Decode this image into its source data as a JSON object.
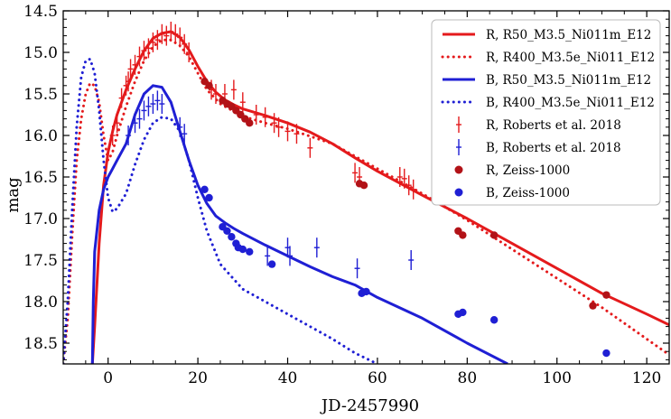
{
  "chart_data": {
    "type": "scatter",
    "title": "",
    "xlabel": "JD-2457990",
    "ylabel": "mag",
    "xlim": [
      -10,
      125
    ],
    "ylim": [
      18.75,
      14.5
    ],
    "y_inverted": true,
    "xticks": [
      0,
      20,
      40,
      60,
      80,
      100,
      120
    ],
    "yticks": [
      14.5,
      15.0,
      15.5,
      16.0,
      16.5,
      17.0,
      17.5,
      18.0,
      18.5
    ],
    "ytick_labels": [
      "14.5",
      "15.0",
      "15.5",
      "16.0",
      "16.5",
      "17.0",
      "17.5",
      "18.0",
      "18.5"
    ],
    "xtick_labels": [
      "0",
      "20",
      "40",
      "60",
      "80",
      "100",
      "120"
    ],
    "grid": false,
    "legend_position": "top-right",
    "model_curves": [
      {
        "name": "R, R50_M3.5_Ni011m_E12",
        "color": "#e41a1c",
        "style": "solid",
        "x": [
          -3.5,
          -3,
          -2,
          -1,
          0,
          1,
          2,
          4,
          6,
          8,
          10,
          12,
          14,
          16,
          18,
          20,
          22,
          24,
          26,
          28,
          30,
          35,
          40,
          45,
          50,
          55,
          60,
          70,
          80,
          90,
          100,
          110,
          120,
          125
        ],
        "y": [
          18.75,
          18.3,
          17.3,
          16.6,
          16.2,
          15.95,
          15.75,
          15.45,
          15.2,
          14.98,
          14.83,
          14.77,
          14.75,
          14.82,
          14.97,
          15.17,
          15.35,
          15.48,
          15.57,
          15.63,
          15.68,
          15.76,
          15.85,
          15.96,
          16.1,
          16.27,
          16.43,
          16.72,
          17.0,
          17.3,
          17.6,
          17.9,
          18.15,
          18.28
        ]
      },
      {
        "name": "R, R400_M3.5e_Ni011_E12",
        "color": "#e41a1c",
        "style": "dotted",
        "x": [
          -10,
          -9,
          -8,
          -7,
          -6,
          -5,
          -4,
          -3,
          -2,
          -1,
          0,
          1,
          2,
          4,
          6,
          8,
          10,
          12,
          14,
          16,
          18,
          20,
          22,
          25,
          30,
          35,
          40,
          50,
          60,
          70,
          80,
          90,
          100,
          110,
          120,
          125
        ],
        "y": [
          18.75,
          18.2,
          17.2,
          16.3,
          15.8,
          15.5,
          15.37,
          15.4,
          15.6,
          16.0,
          16.3,
          16.2,
          16.0,
          15.65,
          15.35,
          15.1,
          14.93,
          14.85,
          14.85,
          14.92,
          15.05,
          15.25,
          15.45,
          15.62,
          15.77,
          15.85,
          15.92,
          16.1,
          16.4,
          16.7,
          17.02,
          17.37,
          17.72,
          18.07,
          18.45,
          18.64
        ]
      },
      {
        "name": "B, R50_M3.5_Ni011m_E12",
        "color": "#1f1fd4",
        "style": "solid",
        "x": [
          -3.5,
          -3.3,
          -3,
          -2,
          -1,
          0,
          1,
          2,
          4,
          6,
          8,
          10,
          12,
          14,
          16,
          18,
          20,
          22,
          24,
          26,
          28,
          30,
          35,
          40,
          45,
          50,
          55,
          60,
          70,
          80,
          89
        ],
        "y": [
          18.75,
          18.0,
          17.4,
          16.9,
          16.65,
          16.5,
          16.4,
          16.3,
          16.1,
          15.75,
          15.5,
          15.4,
          15.42,
          15.6,
          15.95,
          16.3,
          16.6,
          16.82,
          16.97,
          17.05,
          17.12,
          17.18,
          17.32,
          17.45,
          17.58,
          17.7,
          17.8,
          17.95,
          18.2,
          18.5,
          18.75
        ]
      },
      {
        "name": "B, R400_M3.5e_Ni011_E12",
        "color": "#1f1fd4",
        "style": "dotted",
        "x": [
          -10,
          -9,
          -8,
          -7,
          -6,
          -5,
          -4,
          -3,
          -2,
          -1,
          0,
          1,
          2,
          4,
          6,
          8,
          10,
          12,
          14,
          16,
          18,
          20,
          22,
          25,
          30,
          35,
          40,
          45,
          50,
          55,
          60
        ],
        "y": [
          18.75,
          18.0,
          16.9,
          15.9,
          15.3,
          15.1,
          15.08,
          15.25,
          15.7,
          16.3,
          16.75,
          16.92,
          16.88,
          16.7,
          16.35,
          16.05,
          15.85,
          15.78,
          15.8,
          15.95,
          16.3,
          16.75,
          17.15,
          17.55,
          17.85,
          18.0,
          18.15,
          18.3,
          18.45,
          18.62,
          18.75
        ]
      }
    ],
    "observations": [
      {
        "name": "R, Roberts et al. 2018",
        "color": "#e41a1c",
        "marker": "cross",
        "x": [
          1,
          2,
          3,
          4,
          4.5,
          5,
          6,
          7,
          8,
          9,
          10,
          11,
          12,
          13,
          14,
          15,
          16,
          17,
          18,
          23,
          24,
          26,
          28,
          30,
          33,
          35,
          37,
          38,
          40,
          42,
          45,
          55,
          56,
          65,
          66,
          67,
          68
        ],
        "y": [
          16.0,
          15.85,
          15.55,
          15.4,
          15.35,
          15.2,
          15.15,
          15.05,
          14.98,
          14.95,
          14.88,
          14.85,
          14.78,
          14.8,
          14.75,
          14.78,
          14.82,
          14.9,
          15.0,
          15.45,
          15.5,
          15.5,
          15.45,
          15.6,
          15.75,
          15.78,
          15.85,
          15.9,
          15.95,
          15.98,
          16.15,
          16.45,
          16.5,
          16.5,
          16.52,
          16.6,
          16.65
        ]
      },
      {
        "name": "B, Roberts et al. 2018",
        "color": "#1f1fd4",
        "marker": "cross",
        "x": [
          4.5,
          6,
          7,
          8,
          9,
          10,
          11,
          12,
          16,
          17,
          35.5,
          40,
          40.5,
          46.5,
          55.5,
          67.5
        ],
        "y": [
          16.0,
          15.85,
          15.8,
          15.7,
          15.65,
          15.62,
          15.58,
          15.62,
          15.9,
          15.98,
          17.45,
          17.35,
          17.45,
          17.35,
          17.6,
          17.5
        ]
      },
      {
        "name": "R, Zeiss-1000",
        "color": "#b21217",
        "marker": "circle",
        "x": [
          21.5,
          22.5,
          25.5,
          26.5,
          27.5,
          28.5,
          29.5,
          30.5,
          31.5,
          56,
          57,
          78,
          79,
          86,
          108,
          111
        ],
        "y": [
          15.35,
          15.4,
          15.58,
          15.62,
          15.65,
          15.7,
          15.75,
          15.8,
          15.85,
          16.58,
          16.6,
          17.15,
          17.2,
          17.2,
          18.05,
          17.92
        ]
      },
      {
        "name": "B, Zeiss-1000",
        "color": "#1f1fd4",
        "marker": "circle",
        "x": [
          21.5,
          22.5,
          25.5,
          26.5,
          27.5,
          28.5,
          29,
          30,
          31.5,
          36.5,
          56.5,
          57.5,
          78,
          79,
          86,
          111
        ],
        "y": [
          16.65,
          16.75,
          17.1,
          17.15,
          17.22,
          17.3,
          17.35,
          17.37,
          17.4,
          17.55,
          17.9,
          17.88,
          18.15,
          18.13,
          18.22,
          18.62
        ]
      }
    ],
    "legend": [
      "R, R50_M3.5_Ni011m_E12",
      "R, R400_M3.5e_Ni011_E12",
      "B, R50_M3.5_Ni011m_E12",
      "B, R400_M3.5e_Ni011_E12",
      "R, Roberts et al. 2018",
      "B, Roberts et al. 2018",
      "R, Zeiss-1000",
      "B, Zeiss-1000"
    ]
  }
}
